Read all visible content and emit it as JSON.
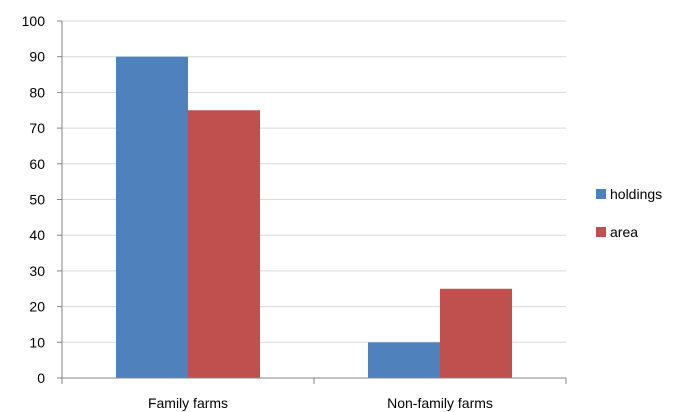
{
  "chart_data": {
    "type": "bar",
    "title": "",
    "xlabel": "",
    "ylabel": "",
    "ylim": [
      0,
      100
    ],
    "yticks": [
      0,
      10,
      20,
      30,
      40,
      50,
      60,
      70,
      80,
      90,
      100
    ],
    "grid": true,
    "legend_position": "right",
    "categories": [
      "Family farms",
      "Non-family farms"
    ],
    "series": [
      {
        "name": "holdings",
        "color": "#4f81bd",
        "values": [
          90,
          10
        ]
      },
      {
        "name": "area",
        "color": "#c0504d",
        "values": [
          75,
          25
        ]
      }
    ]
  }
}
